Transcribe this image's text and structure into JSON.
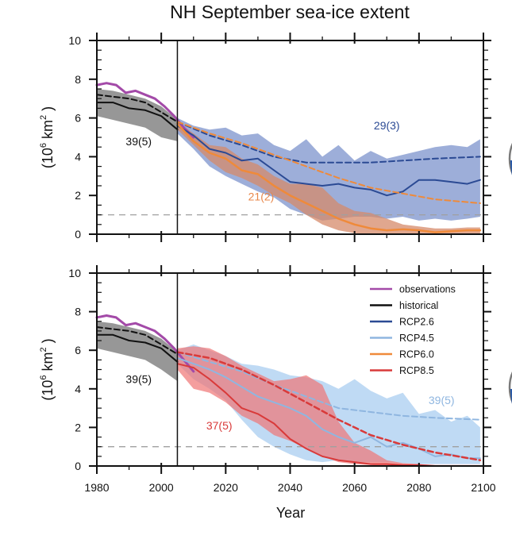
{
  "chart_data": [
    {
      "type": "line",
      "title": "NH September sea-ice extent",
      "xlabel": "",
      "ylabel": "(10^6 km^2)",
      "ylabel_parts": {
        "open": "(10",
        "sup1": "6",
        "mid": " km",
        "sup2": "2",
        "close": ")"
      },
      "xlim": [
        1980,
        2100
      ],
      "ylim": [
        0,
        10
      ],
      "yticks": [
        0,
        2,
        4,
        6,
        8,
        10
      ],
      "xticks": [
        1980,
        2000,
        2020,
        2040,
        2060,
        2080,
        2100
      ],
      "show_xtick_labels": false,
      "grid": false,
      "divider_year": 2005,
      "threshold_line": {
        "value": 1,
        "style": "dashed",
        "color": "#a0a0a0"
      },
      "annotations": [
        {
          "text": "39(5)",
          "x": 1993,
          "y": 4.6,
          "color": "#111111"
        },
        {
          "text": "21(2)",
          "x": 2031,
          "y": 1.75,
          "color": "#e8874a"
        },
        {
          "text": "29(3)",
          "x": 2070,
          "y": 5.4,
          "color": "#2b4a94"
        }
      ],
      "series": [
        {
          "name": "historical-range",
          "kind": "band",
          "color": "#8c8c8c",
          "opacity": 0.9,
          "x": [
            1980,
            1985,
            1990,
            1995,
            2000,
            2005
          ],
          "upper": [
            7.5,
            7.4,
            7.2,
            7.0,
            6.6,
            5.9
          ],
          "lower": [
            6.1,
            5.9,
            5.7,
            5.5,
            5.0,
            4.8
          ]
        },
        {
          "name": "RCP2.6-range",
          "kind": "band",
          "color": "#7c93cc",
          "opacity": 0.75,
          "x": [
            2005,
            2010,
            2015,
            2020,
            2025,
            2030,
            2035,
            2040,
            2045,
            2050,
            2055,
            2060,
            2065,
            2070,
            2075,
            2080,
            2085,
            2090,
            2095,
            2099
          ],
          "upper": [
            6.0,
            5.6,
            5.4,
            5.5,
            5.1,
            5.2,
            4.6,
            4.3,
            4.9,
            4.0,
            4.6,
            3.8,
            4.3,
            3.9,
            4.1,
            4.3,
            4.5,
            4.6,
            4.5,
            4.9
          ],
          "lower": [
            5.2,
            4.4,
            3.5,
            3.0,
            2.6,
            2.2,
            1.9,
            1.3,
            1.0,
            0.7,
            0.8,
            0.9,
            0.9,
            0.8,
            0.9,
            0.7,
            0.8,
            0.7,
            0.8,
            0.9
          ]
        },
        {
          "name": "RCP6.0-range",
          "kind": "band",
          "color": "#d58a6a",
          "opacity": 0.75,
          "x": [
            2005,
            2010,
            2015,
            2020,
            2025,
            2030,
            2035,
            2040,
            2045,
            2050,
            2055,
            2060,
            2065,
            2070,
            2075,
            2080,
            2085,
            2090,
            2095,
            2099
          ],
          "upper": [
            5.8,
            5.2,
            4.6,
            4.5,
            3.9,
            3.6,
            3.0,
            2.6,
            2.6,
            2.4,
            1.6,
            1.2,
            1.1,
            0.8,
            0.5,
            0.4,
            0.3,
            0.3,
            0.35,
            0.35
          ],
          "lower": [
            5.4,
            4.6,
            3.8,
            3.2,
            2.9,
            2.5,
            2.0,
            1.6,
            1.0,
            0.5,
            0.2,
            0.05,
            0.0,
            0.0,
            0.0,
            0.0,
            0.0,
            0.0,
            0.0,
            0.0
          ]
        },
        {
          "name": "observations",
          "kind": "line",
          "color": "#a34aa8",
          "dash": false,
          "width": 3,
          "x": [
            1980,
            1983,
            1986,
            1989,
            1992,
            1995,
            1998,
            2001,
            2004,
            2007,
            2010
          ],
          "y": [
            7.7,
            7.8,
            7.7,
            7.3,
            7.4,
            7.2,
            7.0,
            6.6,
            6.1,
            5.5,
            5.0
          ]
        },
        {
          "name": "historical",
          "kind": "line",
          "color": "#111111",
          "dash": false,
          "width": 2,
          "x": [
            1980,
            1985,
            1990,
            1995,
            2000,
            2005
          ],
          "y": [
            6.8,
            6.8,
            6.5,
            6.4,
            6.1,
            5.4
          ]
        },
        {
          "name": "historical-mean",
          "kind": "line",
          "color": "#111111",
          "dash": true,
          "width": 2,
          "x": [
            1980,
            1985,
            1990,
            1995,
            2000,
            2005
          ],
          "y": [
            7.2,
            7.1,
            7.0,
            6.8,
            6.3,
            5.8
          ]
        },
        {
          "name": "RCP2.6",
          "kind": "line",
          "color": "#2b4a94",
          "dash": false,
          "width": 2,
          "x": [
            2005,
            2010,
            2015,
            2020,
            2025,
            2030,
            2035,
            2040,
            2045,
            2050,
            2055,
            2060,
            2065,
            2070,
            2075,
            2080,
            2085,
            2090,
            2095,
            2099
          ],
          "y": [
            5.6,
            5.1,
            4.4,
            4.2,
            3.8,
            3.9,
            3.3,
            2.7,
            2.6,
            2.5,
            2.6,
            2.4,
            2.3,
            2.0,
            2.2,
            2.8,
            2.8,
            2.7,
            2.6,
            2.8
          ]
        },
        {
          "name": "RCP2.6-mean",
          "kind": "line",
          "color": "#2b4a94",
          "dash": true,
          "width": 2,
          "x": [
            2005,
            2015,
            2025,
            2035,
            2045,
            2055,
            2065,
            2075,
            2085,
            2099
          ],
          "y": [
            5.8,
            5.1,
            4.6,
            4.0,
            3.7,
            3.7,
            3.7,
            3.8,
            3.9,
            4.0
          ]
        },
        {
          "name": "RCP6.0",
          "kind": "line",
          "color": "#ef8a3a",
          "dash": false,
          "width": 2.5,
          "x": [
            2005,
            2010,
            2015,
            2020,
            2025,
            2030,
            2035,
            2040,
            2045,
            2050,
            2055,
            2060,
            2065,
            2070,
            2075,
            2080,
            2085,
            2090,
            2095,
            2099
          ],
          "y": [
            5.7,
            4.8,
            4.2,
            3.9,
            3.3,
            3.1,
            2.5,
            2.0,
            1.6,
            1.2,
            0.8,
            0.5,
            0.3,
            0.2,
            0.25,
            0.2,
            0.1,
            0.15,
            0.2,
            0.2
          ]
        },
        {
          "name": "RCP6.0-mean",
          "kind": "line",
          "color": "#ef8a3a",
          "dash": true,
          "width": 2,
          "x": [
            2005,
            2015,
            2025,
            2035,
            2045,
            2055,
            2065,
            2075,
            2085,
            2099
          ],
          "y": [
            5.8,
            5.2,
            4.7,
            4.1,
            3.5,
            2.9,
            2.4,
            2.1,
            1.8,
            1.6
          ]
        }
      ]
    },
    {
      "type": "line",
      "title": "",
      "xlabel": "Year",
      "ylabel": "(10^6 km^2)",
      "ylabel_parts": {
        "open": "(10",
        "sup1": "6",
        "mid": " km",
        "sup2": "2",
        "close": ")"
      },
      "xlim": [
        1980,
        2100
      ],
      "ylim": [
        0,
        10
      ],
      "yticks": [
        0,
        2,
        4,
        6,
        8,
        10
      ],
      "xticks": [
        1980,
        2000,
        2020,
        2040,
        2060,
        2080,
        2100
      ],
      "show_xtick_labels": true,
      "grid": false,
      "divider_year": 2005,
      "threshold_line": {
        "value": 1,
        "style": "dashed",
        "color": "#a0a0a0"
      },
      "legend": {
        "placement": "top-right",
        "entries": [
          {
            "label": "observations",
            "color": "#a34aa8"
          },
          {
            "label": "historical",
            "color": "#111111"
          },
          {
            "label": "RCP2.6",
            "color": "#2b4a94"
          },
          {
            "label": "RCP4.5",
            "color": "#8fb6e0"
          },
          {
            "label": "RCP6.0",
            "color": "#ef8a3a"
          },
          {
            "label": "RCP8.5",
            "color": "#d93a3a"
          }
        ]
      },
      "annotations": [
        {
          "text": "39(5)",
          "x": 1993,
          "y": 4.3,
          "color": "#111111"
        },
        {
          "text": "37(5)",
          "x": 2018,
          "y": 1.9,
          "color": "#d93a3a"
        },
        {
          "text": "39(5)",
          "x": 2087,
          "y": 3.2,
          "color": "#8fb6e0"
        }
      ],
      "series": [
        {
          "name": "historical-range",
          "kind": "band",
          "color": "#8c8c8c",
          "opacity": 0.9,
          "x": [
            1980,
            1985,
            1990,
            1995,
            2000,
            2005
          ],
          "upper": [
            7.5,
            7.4,
            7.2,
            7.0,
            6.6,
            5.9
          ],
          "lower": [
            6.1,
            5.9,
            5.7,
            5.5,
            5.0,
            4.4
          ]
        },
        {
          "name": "RCP4.5-range",
          "kind": "band",
          "color": "#a9cdf0",
          "opacity": 0.75,
          "x": [
            2005,
            2010,
            2015,
            2020,
            2025,
            2030,
            2035,
            2040,
            2045,
            2050,
            2055,
            2060,
            2065,
            2070,
            2075,
            2080,
            2085,
            2090,
            2095,
            2099
          ],
          "upper": [
            6.0,
            6.3,
            6.0,
            5.7,
            5.3,
            5.2,
            5.0,
            4.7,
            4.6,
            4.4,
            4.0,
            4.5,
            3.9,
            3.5,
            3.8,
            2.7,
            2.9,
            2.3,
            2.6,
            2.0
          ],
          "lower": [
            5.3,
            4.5,
            4.0,
            3.4,
            2.4,
            1.5,
            1.0,
            0.6,
            0.3,
            0.2,
            0.3,
            0.2,
            0.2,
            0.2,
            0.15,
            0.1,
            0.1,
            0.1,
            0.1,
            0.1
          ]
        },
        {
          "name": "RCP8.5-range",
          "kind": "band",
          "color": "#f07575",
          "opacity": 0.7,
          "x": [
            2005,
            2010,
            2015,
            2020,
            2025,
            2030,
            2035,
            2040,
            2045,
            2050,
            2055,
            2060,
            2065,
            2070,
            2075,
            2080,
            2085,
            2090,
            2095,
            2099
          ],
          "upper": [
            6.1,
            6.2,
            6.1,
            5.7,
            5.2,
            4.8,
            4.4,
            4.5,
            4.7,
            4.2,
            2.3,
            1.2,
            0.8,
            0.3,
            0.15,
            0.1,
            0.05,
            0.05,
            0.05,
            0.05
          ],
          "lower": [
            5.0,
            4.0,
            3.8,
            3.3,
            2.6,
            2.2,
            1.6,
            1.3,
            0.9,
            0.5,
            0.2,
            0.1,
            0.05,
            0.0,
            0.0,
            0.0,
            0.0,
            0.0,
            0.0,
            0.0
          ]
        },
        {
          "name": "observations",
          "kind": "line",
          "color": "#a34aa8",
          "dash": false,
          "width": 3,
          "x": [
            1980,
            1983,
            1986,
            1989,
            1992,
            1995,
            1998,
            2001,
            2004,
            2007,
            2010
          ],
          "y": [
            7.7,
            7.8,
            7.7,
            7.3,
            7.4,
            7.2,
            7.0,
            6.6,
            6.1,
            5.5,
            4.9
          ]
        },
        {
          "name": "historical",
          "kind": "line",
          "color": "#111111",
          "dash": false,
          "width": 2,
          "x": [
            1980,
            1985,
            1990,
            1995,
            2000,
            2005
          ],
          "y": [
            6.8,
            6.8,
            6.5,
            6.4,
            6.1,
            5.4
          ]
        },
        {
          "name": "historical-mean",
          "kind": "line",
          "color": "#111111",
          "dash": true,
          "width": 2,
          "x": [
            1980,
            1985,
            1990,
            1995,
            2000,
            2005
          ],
          "y": [
            7.2,
            7.1,
            7.0,
            6.8,
            6.3,
            5.8
          ]
        },
        {
          "name": "RCP4.5",
          "kind": "line",
          "color": "#8fb6e0",
          "dash": false,
          "width": 2,
          "x": [
            2005,
            2010,
            2015,
            2020,
            2025,
            2030,
            2035,
            2040,
            2045,
            2050,
            2055,
            2060,
            2065,
            2070,
            2075,
            2080,
            2085,
            2090,
            2095,
            2099
          ],
          "y": [
            5.6,
            5.3,
            5.0,
            4.6,
            4.1,
            3.6,
            3.3,
            3.0,
            2.6,
            1.9,
            1.5,
            1.2,
            1.5,
            1.0,
            1.2,
            0.9,
            0.5,
            0.6,
            0.4,
            0.4
          ]
        },
        {
          "name": "RCP4.5-mean",
          "kind": "line",
          "color": "#8fb6e0",
          "dash": true,
          "width": 2,
          "x": [
            2005,
            2015,
            2025,
            2035,
            2045,
            2055,
            2065,
            2075,
            2085,
            2099
          ],
          "y": [
            5.9,
            5.4,
            4.9,
            4.2,
            3.6,
            3.0,
            2.8,
            2.6,
            2.5,
            2.4
          ]
        },
        {
          "name": "RCP8.5",
          "kind": "line",
          "color": "#d93a3a",
          "dash": false,
          "width": 2,
          "x": [
            2005,
            2010,
            2015,
            2020,
            2025,
            2030,
            2035,
            2040,
            2045,
            2050,
            2055,
            2060,
            2065,
            2070,
            2075,
            2080,
            2085,
            2090,
            2095,
            2099
          ],
          "y": [
            5.3,
            5.1,
            4.5,
            3.8,
            3.0,
            2.7,
            2.2,
            1.4,
            0.9,
            0.5,
            0.3,
            0.2,
            0.1,
            0.1,
            0.05,
            0.05,
            0.0,
            0.0,
            0.0,
            0.0
          ]
        },
        {
          "name": "RCP8.5-mean",
          "kind": "line",
          "color": "#d93a3a",
          "dash": true,
          "width": 2.5,
          "x": [
            2005,
            2015,
            2025,
            2035,
            2045,
            2055,
            2065,
            2075,
            2085,
            2099
          ],
          "y": [
            5.9,
            5.6,
            5.0,
            4.2,
            3.3,
            2.4,
            1.6,
            1.1,
            0.7,
            0.3
          ]
        }
      ]
    }
  ]
}
